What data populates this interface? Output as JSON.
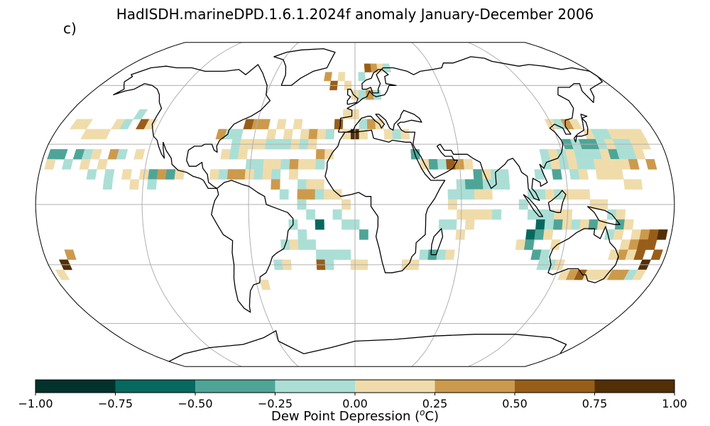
{
  "title": "HadISDH.marineDPD.1.6.1.2024f anomaly January-December 2006",
  "panel_label": "c)",
  "colorbar": {
    "label_main": "Dew Point Depression (",
    "label_sup": "o",
    "label_tail": "C)",
    "ticks": [
      "−1.00",
      "−0.75",
      "−0.50",
      "−0.25",
      "0.00",
      "0.25",
      "0.50",
      "0.75",
      "1.00"
    ],
    "colors": [
      "#01332c",
      "#06695f",
      "#4ea597",
      "#abdfd6",
      "#f0dcab",
      "#cc9a4d",
      "#985e19",
      "#522f05"
    ]
  },
  "chart_data": {
    "type": "heatmap",
    "projection": "Robinson",
    "title": "HadISDH.marineDPD.1.6.1.2024f anomaly January-December 2006",
    "variable": "Dew Point Depression anomaly (oC)",
    "range": [
      -1.0,
      1.0
    ],
    "gridlines": true,
    "cells_lonlat_value": [
      [
        -170,
        40,
        0.1
      ],
      [
        -165,
        40,
        0.1
      ],
      [
        -160,
        35,
        0.1
      ],
      [
        -155,
        35,
        0.1
      ],
      [
        -150,
        35,
        0.1
      ],
      [
        -145,
        40,
        0.1
      ],
      [
        -140,
        40,
        -0.1
      ],
      [
        -135,
        45,
        -0.1
      ],
      [
        -130,
        40,
        0.6
      ],
      [
        -125,
        40,
        0.1
      ],
      [
        -175,
        25,
        -0.4
      ],
      [
        -170,
        25,
        -0.4
      ],
      [
        -160,
        25,
        -0.4
      ],
      [
        -155,
        25,
        -0.1
      ],
      [
        -150,
        25,
        0.1
      ],
      [
        -145,
        20,
        0.1
      ],
      [
        -140,
        25,
        0.3
      ],
      [
        -135,
        25,
        -0.1
      ],
      [
        -125,
        25,
        0.1
      ],
      [
        -175,
        20,
        0.1
      ],
      [
        -165,
        20,
        -0.1
      ],
      [
        -155,
        20,
        0.1
      ],
      [
        -150,
        15,
        -0.1
      ],
      [
        -140,
        15,
        -0.1
      ],
      [
        -130,
        15,
        0.1
      ],
      [
        -120,
        15,
        0.1
      ],
      [
        -115,
        15,
        -0.4
      ],
      [
        -110,
        15,
        0.3
      ],
      [
        -105,
        15,
        -0.4
      ],
      [
        -100,
        15,
        0.1
      ],
      [
        -140,
        10,
        -0.1
      ],
      [
        -125,
        10,
        0.1
      ],
      [
        -115,
        10,
        -0.1
      ],
      [
        -165,
        -25,
        0.3
      ],
      [
        -170,
        -30,
        0.8
      ],
      [
        -175,
        -35,
        0.1
      ],
      [
        -80,
        35,
        0.3
      ],
      [
        -75,
        35,
        -0.1
      ],
      [
        -70,
        35,
        -0.1
      ],
      [
        -65,
        40,
        0.6
      ],
      [
        -60,
        40,
        0.3
      ],
      [
        -55,
        40,
        0.3
      ],
      [
        -50,
        35,
        0.1
      ],
      [
        -45,
        40,
        0.1
      ],
      [
        -40,
        35,
        0.1
      ],
      [
        -35,
        40,
        0.1
      ],
      [
        -30,
        35,
        0.1
      ],
      [
        -25,
        35,
        0.3
      ],
      [
        -20,
        35,
        0.1
      ],
      [
        -15,
        35,
        -0.1
      ],
      [
        -10,
        40,
        0.6
      ],
      [
        -5,
        45,
        0.1
      ],
      [
        -70,
        30,
        -0.1
      ],
      [
        -65,
        30,
        0.1
      ],
      [
        -60,
        30,
        0.1
      ],
      [
        -55,
        30,
        0.1
      ],
      [
        -50,
        30,
        -0.1
      ],
      [
        -45,
        30,
        -0.1
      ],
      [
        -40,
        30,
        -0.1
      ],
      [
        -35,
        30,
        0.1
      ],
      [
        -30,
        30,
        -0.1
      ],
      [
        -25,
        30,
        0.1
      ],
      [
        -20,
        25,
        0.3
      ],
      [
        -15,
        25,
        0.1
      ],
      [
        -75,
        25,
        0.1
      ],
      [
        -70,
        25,
        -0.1
      ],
      [
        -65,
        25,
        0.1
      ],
      [
        -60,
        20,
        -0.1
      ],
      [
        -55,
        20,
        -0.1
      ],
      [
        -50,
        20,
        0.1
      ],
      [
        -45,
        20,
        0.1
      ],
      [
        -40,
        20,
        -0.1
      ],
      [
        -35,
        20,
        0.3
      ],
      [
        -30,
        20,
        0.1
      ],
      [
        -25,
        20,
        0.1
      ],
      [
        -20,
        20,
        -0.1
      ],
      [
        -80,
        15,
        0.1
      ],
      [
        -75,
        15,
        -0.1
      ],
      [
        -70,
        15,
        0.3
      ],
      [
        -65,
        15,
        0.3
      ],
      [
        -60,
        15,
        0.1
      ],
      [
        -55,
        15,
        -0.1
      ],
      [
        -50,
        15,
        0.1
      ],
      [
        -45,
        15,
        -0.1
      ],
      [
        -35,
        15,
        0.1
      ],
      [
        -30,
        10,
        -0.1
      ],
      [
        -25,
        10,
        0.1
      ],
      [
        -20,
        10,
        0.1
      ],
      [
        -45,
        10,
        0.3
      ],
      [
        -40,
        5,
        -0.1
      ],
      [
        -30,
        5,
        0.3
      ],
      [
        -25,
        5,
        0.3
      ],
      [
        -20,
        5,
        -0.1
      ],
      [
        -15,
        5,
        0.1
      ],
      [
        -10,
        5,
        0.1
      ],
      [
        -5,
        0,
        0.1
      ],
      [
        -30,
        0,
        -0.1
      ],
      [
        -25,
        -5,
        -0.1
      ],
      [
        -20,
        -10,
        -0.6
      ],
      [
        -10,
        -5,
        -0.1
      ],
      [
        -5,
        -10,
        -0.1
      ],
      [
        0,
        -10,
        -0.1
      ],
      [
        5,
        -15,
        -0.4
      ],
      [
        -35,
        -10,
        -0.1
      ],
      [
        -30,
        -15,
        -0.1
      ],
      [
        -40,
        -20,
        -0.1
      ],
      [
        -35,
        -20,
        0.1
      ],
      [
        -30,
        -20,
        -0.1
      ],
      [
        -25,
        -20,
        -0.1
      ],
      [
        -20,
        -25,
        -0.1
      ],
      [
        -15,
        -25,
        -0.1
      ],
      [
        -10,
        -25,
        -0.1
      ],
      [
        -5,
        -25,
        -0.1
      ],
      [
        0,
        -30,
        0.1
      ],
      [
        5,
        -30,
        0.1
      ],
      [
        -45,
        -30,
        -0.1
      ],
      [
        -40,
        -30,
        0.1
      ],
      [
        -20,
        -30,
        0.6
      ],
      [
        -15,
        -30,
        -0.1
      ],
      [
        -55,
        -40,
        0.1
      ],
      [
        0,
        55,
        0.1
      ],
      [
        5,
        55,
        -0.1
      ],
      [
        10,
        55,
        0.3
      ],
      [
        15,
        55,
        -0.1
      ],
      [
        -5,
        60,
        0.1
      ],
      [
        -15,
        60,
        0.6
      ],
      [
        -20,
        65,
        0.3
      ],
      [
        -10,
        65,
        0.1
      ],
      [
        5,
        65,
        -0.1
      ],
      [
        10,
        70,
        0.6
      ],
      [
        15,
        70,
        0.3
      ],
      [
        20,
        70,
        0.1
      ],
      [
        25,
        70,
        -0.1
      ],
      [
        0,
        45,
        0.1
      ],
      [
        5,
        40,
        -0.1
      ],
      [
        10,
        40,
        0.3
      ],
      [
        15,
        40,
        0.1
      ],
      [
        20,
        35,
        0.1
      ],
      [
        25,
        35,
        -0.1
      ],
      [
        30,
        35,
        0.1
      ],
      [
        -5,
        35,
        0.1
      ],
      [
        0,
        35,
        0.8
      ],
      [
        5,
        35,
        0.1
      ],
      [
        35,
        25,
        -0.4
      ],
      [
        40,
        20,
        0.1
      ],
      [
        45,
        20,
        -0.4
      ],
      [
        50,
        20,
        -0.1
      ],
      [
        55,
        20,
        0.6
      ],
      [
        60,
        20,
        0.3
      ],
      [
        65,
        20,
        0.1
      ],
      [
        70,
        15,
        -0.4
      ],
      [
        75,
        15,
        0.1
      ],
      [
        80,
        15,
        -0.1
      ],
      [
        85,
        15,
        -0.1
      ],
      [
        60,
        10,
        -0.1
      ],
      [
        65,
        10,
        -0.4
      ],
      [
        70,
        10,
        -0.4
      ],
      [
        75,
        10,
        -0.1
      ],
      [
        80,
        10,
        -0.1
      ],
      [
        85,
        10,
        -0.1
      ],
      [
        55,
        5,
        -0.1
      ],
      [
        60,
        5,
        -0.1
      ],
      [
        65,
        5,
        -0.1
      ],
      [
        70,
        5,
        0.1
      ],
      [
        75,
        5,
        0.1
      ],
      [
        55,
        0,
        0.1
      ],
      [
        60,
        -5,
        0.1
      ],
      [
        65,
        -5,
        0.1
      ],
      [
        70,
        -5,
        0.1
      ],
      [
        75,
        -5,
        0.1
      ],
      [
        80,
        -5,
        -0.1
      ],
      [
        50,
        -10,
        -0.1
      ],
      [
        55,
        -10,
        -0.1
      ],
      [
        60,
        -15,
        0.1
      ],
      [
        65,
        -10,
        0.1
      ],
      [
        40,
        -25,
        -0.1
      ],
      [
        45,
        -25,
        -0.4
      ],
      [
        50,
        -25,
        -0.1
      ],
      [
        55,
        -25,
        0.1
      ],
      [
        35,
        -30,
        0.1
      ],
      [
        30,
        -30,
        0.1
      ],
      [
        120,
        40,
        0.1
      ],
      [
        125,
        40,
        -0.1
      ],
      [
        130,
        40,
        0.3
      ],
      [
        135,
        40,
        0.1
      ],
      [
        140,
        35,
        0.1
      ],
      [
        145,
        35,
        -0.1
      ],
      [
        150,
        35,
        -0.1
      ],
      [
        155,
        35,
        0.1
      ],
      [
        160,
        35,
        0.1
      ],
      [
        165,
        35,
        0.1
      ],
      [
        170,
        35,
        0.1
      ],
      [
        125,
        30,
        -0.4
      ],
      [
        130,
        30,
        -0.1
      ],
      [
        135,
        30,
        -0.4
      ],
      [
        140,
        30,
        -0.4
      ],
      [
        145,
        30,
        -0.1
      ],
      [
        150,
        30,
        0.1
      ],
      [
        155,
        30,
        -0.1
      ],
      [
        160,
        30,
        -0.1
      ],
      [
        165,
        30,
        0.1
      ],
      [
        170,
        30,
        0.1
      ],
      [
        110,
        25,
        -0.1
      ],
      [
        115,
        25,
        0.1
      ],
      [
        120,
        25,
        -0.1
      ],
      [
        125,
        25,
        0.1
      ],
      [
        130,
        25,
        -0.1
      ],
      [
        135,
        25,
        -0.1
      ],
      [
        140,
        25,
        -0.1
      ],
      [
        145,
        25,
        0.1
      ],
      [
        150,
        25,
        -0.4
      ],
      [
        155,
        25,
        -0.1
      ],
      [
        160,
        25,
        -0.1
      ],
      [
        165,
        25,
        0.1
      ],
      [
        170,
        20,
        0.3
      ],
      [
        110,
        20,
        -0.1
      ],
      [
        115,
        20,
        0.1
      ],
      [
        120,
        20,
        -0.1
      ],
      [
        125,
        20,
        0.1
      ],
      [
        130,
        20,
        -0.1
      ],
      [
        135,
        20,
        -0.1
      ],
      [
        140,
        20,
        0.1
      ],
      [
        145,
        20,
        0.1
      ],
      [
        150,
        20,
        0.1
      ],
      [
        155,
        20,
        0.1
      ],
      [
        160,
        20,
        0.3
      ],
      [
        105,
        15,
        -0.1
      ],
      [
        115,
        15,
        -0.4
      ],
      [
        125,
        15,
        -0.1
      ],
      [
        130,
        15,
        0.1
      ],
      [
        140,
        15,
        0.1
      ],
      [
        145,
        15,
        0.1
      ],
      [
        150,
        15,
        0.1
      ],
      [
        155,
        10,
        0.1
      ],
      [
        160,
        10,
        0.1
      ],
      [
        100,
        5,
        -0.1
      ],
      [
        105,
        5,
        -0.1
      ],
      [
        110,
        5,
        0.1
      ],
      [
        115,
        5,
        -0.1
      ],
      [
        120,
        5,
        0.1
      ],
      [
        125,
        5,
        0.1
      ],
      [
        130,
        5,
        0.1
      ],
      [
        135,
        0,
        0.1
      ],
      [
        140,
        0,
        0.1
      ],
      [
        95,
        0,
        -0.1
      ],
      [
        100,
        -5,
        -0.1
      ],
      [
        105,
        -5,
        -0.1
      ],
      [
        110,
        -5,
        -0.1
      ],
      [
        115,
        -5,
        0.1
      ],
      [
        120,
        -5,
        0.1
      ],
      [
        125,
        -10,
        -0.1
      ],
      [
        130,
        -10,
        0.1
      ],
      [
        135,
        -10,
        -0.4
      ],
      [
        140,
        -10,
        0.1
      ],
      [
        145,
        -5,
        -0.1
      ],
      [
        150,
        -5,
        0.1
      ],
      [
        105,
        -10,
        -0.6
      ],
      [
        110,
        -10,
        -0.1
      ],
      [
        115,
        -10,
        -0.4
      ],
      [
        120,
        -10,
        0.1
      ],
      [
        150,
        -10,
        -0.4
      ],
      [
        155,
        -10,
        0.1
      ],
      [
        160,
        -15,
        0.1
      ],
      [
        165,
        -15,
        0.3
      ],
      [
        170,
        -15,
        0.6
      ],
      [
        175,
        -15,
        0.8
      ],
      [
        100,
        -15,
        -0.6
      ],
      [
        105,
        -15,
        -0.4
      ],
      [
        110,
        -15,
        0.1
      ],
      [
        115,
        -20,
        0.1
      ],
      [
        145,
        -15,
        -0.1
      ],
      [
        150,
        -15,
        0.1
      ],
      [
        155,
        -20,
        0.1
      ],
      [
        160,
        -20,
        0.3
      ],
      [
        165,
        -20,
        0.6
      ],
      [
        170,
        -20,
        0.6
      ],
      [
        95,
        -20,
        0.1
      ],
      [
        100,
        -20,
        -0.4
      ],
      [
        105,
        -25,
        -0.4
      ],
      [
        110,
        -25,
        -0.1
      ],
      [
        150,
        -25,
        0.1
      ],
      [
        155,
        -25,
        0.3
      ],
      [
        160,
        -25,
        0.1
      ],
      [
        165,
        -25,
        0.6
      ],
      [
        170,
        -30,
        0.9
      ],
      [
        175,
        -25,
        0.6
      ],
      [
        110,
        -30,
        -0.1
      ],
      [
        115,
        -30,
        -0.1
      ],
      [
        120,
        -30,
        0.1
      ],
      [
        125,
        -35,
        0.1
      ],
      [
        130,
        -35,
        0.3
      ],
      [
        135,
        -35,
        0.6
      ],
      [
        140,
        -35,
        0.1
      ],
      [
        145,
        -35,
        0.1
      ],
      [
        150,
        -35,
        0.1
      ],
      [
        155,
        -35,
        0.3
      ],
      [
        160,
        -35,
        0.3
      ],
      [
        165,
        -35,
        -0.1
      ],
      [
        170,
        -35,
        0.1
      ]
    ]
  }
}
